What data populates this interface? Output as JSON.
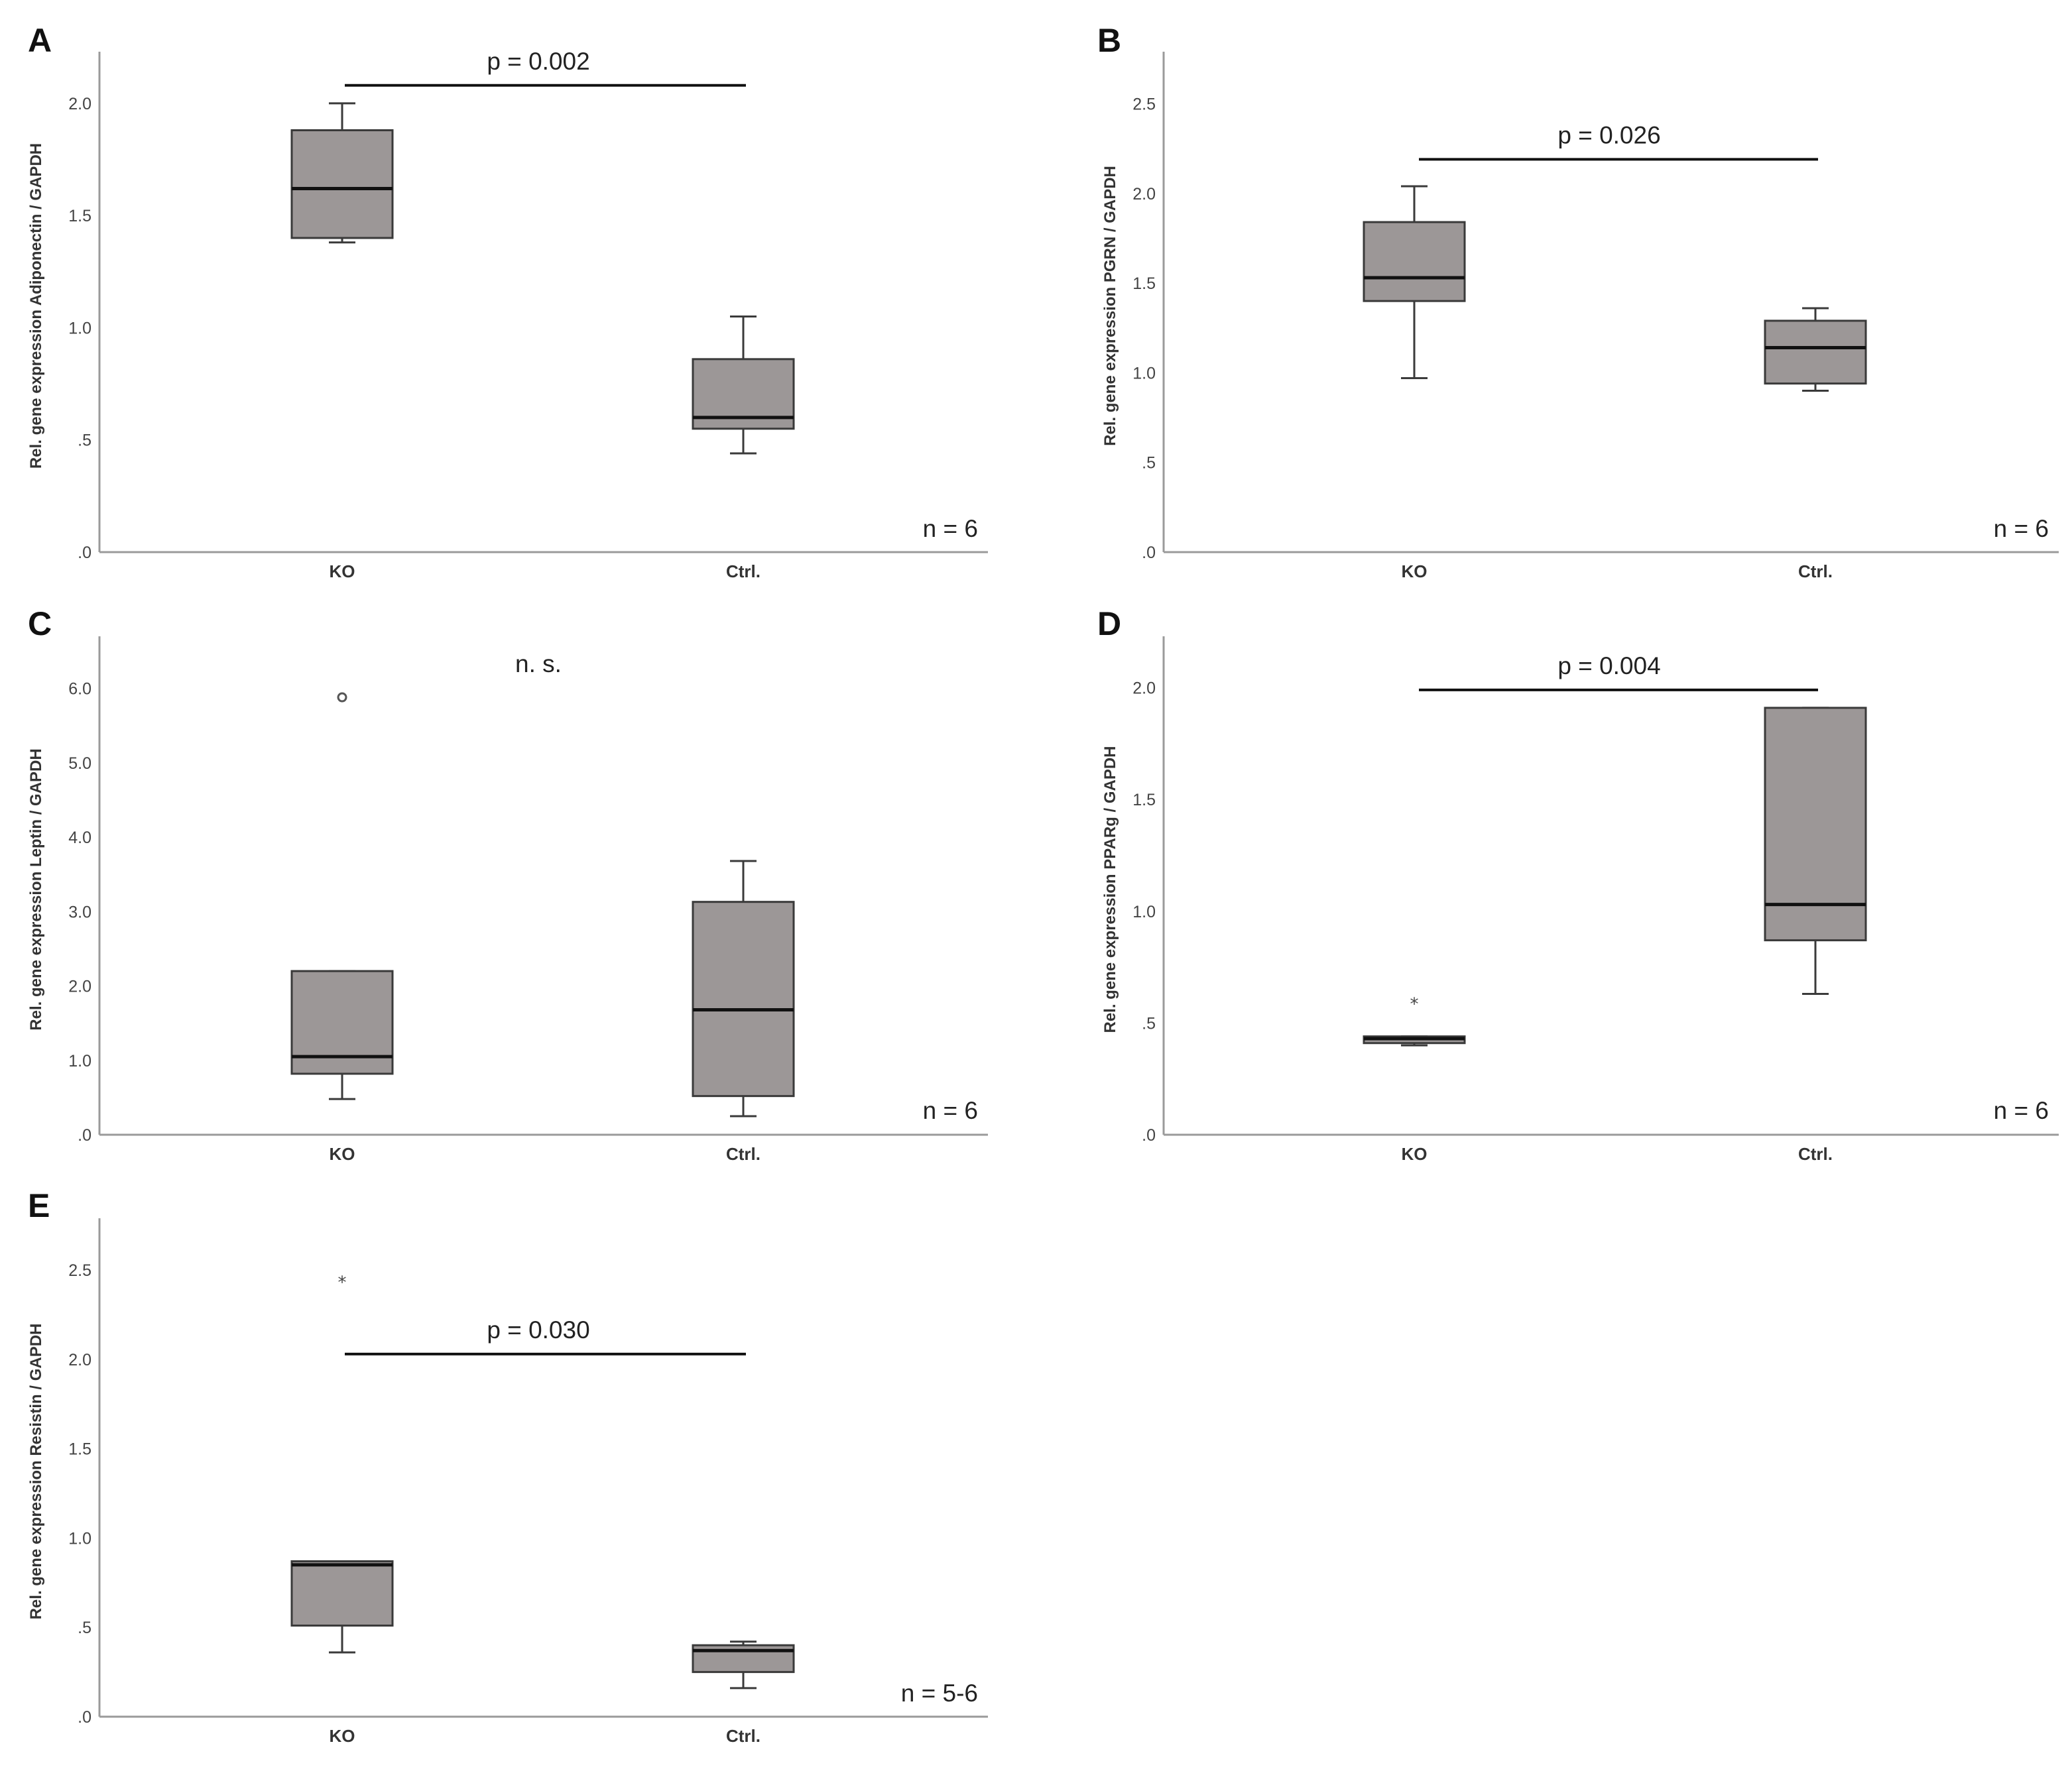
{
  "chart_data": [
    {
      "panel": "A",
      "type": "box",
      "ylabel": "Rel. gene expression Adiponectin / GAPDH",
      "categories": [
        "KO",
        "Ctrl."
      ],
      "yticks": [
        {
          "v": 0,
          "label": ".0"
        },
        {
          "v": 0.5,
          "label": ".5"
        },
        {
          "v": 1.0,
          "label": "1.0"
        },
        {
          "v": 1.5,
          "label": "1.5"
        },
        {
          "v": 2.0,
          "label": "2.0"
        }
      ],
      "ylim": [
        0,
        2.23
      ],
      "boxes": [
        {
          "category": "KO",
          "whisker_low": 1.38,
          "q1": 1.4,
          "median": 1.62,
          "q3": 1.88,
          "whisker_high": 2.0
        },
        {
          "category": "Ctrl.",
          "whisker_low": 0.44,
          "q1": 0.55,
          "median": 0.6,
          "q3": 0.86,
          "whisker_high": 1.05
        }
      ],
      "outliers": [],
      "significance": {
        "text": "p = 0.002",
        "y": 2.08
      },
      "n_label": "n = 6"
    },
    {
      "panel": "B",
      "type": "box",
      "ylabel": "Rel. gene expression PGRN / GAPDH",
      "categories": [
        "KO",
        "Ctrl."
      ],
      "yticks": [
        {
          "v": 0,
          "label": ".0"
        },
        {
          "v": 0.5,
          "label": ".5"
        },
        {
          "v": 1.0,
          "label": "1.0"
        },
        {
          "v": 1.5,
          "label": "1.5"
        },
        {
          "v": 2.0,
          "label": "2.0"
        },
        {
          "v": 2.5,
          "label": "2.5"
        }
      ],
      "ylim": [
        0,
        2.79
      ],
      "boxes": [
        {
          "category": "KO",
          "whisker_low": 0.97,
          "q1": 1.4,
          "median": 1.53,
          "q3": 1.84,
          "whisker_high": 2.04
        },
        {
          "category": "Ctrl.",
          "whisker_low": 0.9,
          "q1": 0.94,
          "median": 1.14,
          "q3": 1.29,
          "whisker_high": 1.36
        }
      ],
      "outliers": [],
      "significance": {
        "text": "p = 0.026",
        "y": 2.19
      },
      "n_label": "n = 6"
    },
    {
      "panel": "C",
      "type": "box",
      "ylabel": "Rel. gene expression Leptin / GAPDH",
      "categories": [
        "KO",
        "Ctrl."
      ],
      "yticks": [
        {
          "v": 0,
          "label": ".0"
        },
        {
          "v": 1.0,
          "label": "1.0"
        },
        {
          "v": 2.0,
          "label": "2.0"
        },
        {
          "v": 3.0,
          "label": "3.0"
        },
        {
          "v": 4.0,
          "label": "4.0"
        },
        {
          "v": 5.0,
          "label": "5.0"
        },
        {
          "v": 6.0,
          "label": "6.0"
        }
      ],
      "ylim": [
        0,
        6.7
      ],
      "boxes": [
        {
          "category": "KO",
          "whisker_low": 0.48,
          "q1": 0.82,
          "median": 1.05,
          "q3": 2.2,
          "whisker_high": 2.2
        },
        {
          "category": "Ctrl.",
          "whisker_low": 0.25,
          "q1": 0.52,
          "median": 1.68,
          "q3": 3.13,
          "whisker_high": 3.68
        }
      ],
      "outliers": [
        {
          "category": "KO",
          "value": 5.88,
          "marker": "circle"
        }
      ],
      "significance": {
        "text": "n. s.",
        "y": null
      },
      "n_label": "n = 6"
    },
    {
      "panel": "D",
      "type": "box",
      "ylabel": "Rel. gene expression PPARg / GAPDH",
      "categories": [
        "KO",
        "Ctrl."
      ],
      "yticks": [
        {
          "v": 0,
          "label": ".0"
        },
        {
          "v": 0.5,
          "label": ".5"
        },
        {
          "v": 1.0,
          "label": "1.0"
        },
        {
          "v": 1.5,
          "label": "1.5"
        },
        {
          "v": 2.0,
          "label": "2.0"
        }
      ],
      "ylim": [
        0,
        2.23
      ],
      "boxes": [
        {
          "category": "KO",
          "whisker_low": 0.4,
          "q1": 0.41,
          "median": 0.43,
          "q3": 0.44,
          "whisker_high": 0.44
        },
        {
          "category": "Ctrl.",
          "whisker_low": 0.63,
          "q1": 0.87,
          "median": 1.03,
          "q3": 1.91,
          "whisker_high": 1.91
        }
      ],
      "outliers": [
        {
          "category": "KO",
          "value": 0.6,
          "marker": "star"
        }
      ],
      "significance": {
        "text": "p = 0.004",
        "y": 1.99
      },
      "n_label": "n = 6"
    },
    {
      "panel": "E",
      "type": "box",
      "ylabel": "Rel. gene expression Resistin / GAPDH",
      "categories": [
        "KO",
        "Ctrl."
      ],
      "yticks": [
        {
          "v": 0,
          "label": ".0"
        },
        {
          "v": 0.5,
          "label": ".5"
        },
        {
          "v": 1.0,
          "label": "1.0"
        },
        {
          "v": 1.5,
          "label": "1.5"
        },
        {
          "v": 2.0,
          "label": "2.0"
        },
        {
          "v": 2.5,
          "label": "2.5"
        }
      ],
      "ylim": [
        0,
        2.79
      ],
      "boxes": [
        {
          "category": "KO",
          "whisker_low": 0.36,
          "q1": 0.51,
          "median": 0.85,
          "q3": 0.87,
          "whisker_high": 0.87
        },
        {
          "category": "Ctrl.",
          "whisker_low": 0.16,
          "q1": 0.25,
          "median": 0.37,
          "q3": 0.4,
          "whisker_high": 0.42
        }
      ],
      "outliers": [
        {
          "category": "KO",
          "value": 2.45,
          "marker": "star"
        }
      ],
      "significance": {
        "text": "p = 0.030",
        "y": 2.03
      },
      "n_label": "n = 5-6"
    }
  ]
}
